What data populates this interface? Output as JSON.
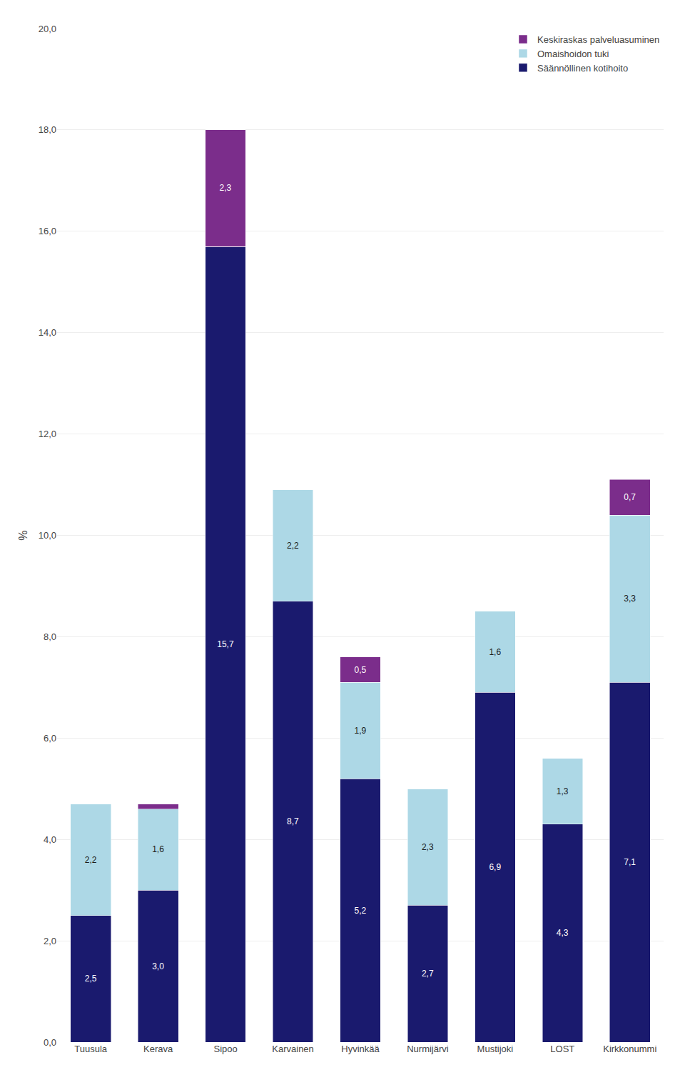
{
  "chart_data": {
    "type": "bar",
    "stacked": true,
    "data_labels": true,
    "categories": [
      "Tuusula",
      "Kerava",
      "Sipoo",
      "Karvainen",
      "Hyvinkää",
      "Nurmijärvi",
      "Mustijoki",
      "LOST",
      "Kirkkonummi"
    ],
    "series": [
      {
        "name": "Säännöllinen kotihoito",
        "color": "#1a1a6e",
        "values": [
          2.5,
          3.0,
          15.7,
          8.7,
          5.2,
          2.7,
          6.9,
          4.3,
          7.1
        ],
        "value_labels": [
          "2,5",
          "3,0",
          "15,7",
          "8,7",
          "5,2",
          "2,7",
          "6,9",
          "4,3",
          "7,1"
        ]
      },
      {
        "name": "Omaishoidon tuki",
        "color": "#add8e6",
        "values": [
          2.2,
          1.6,
          0.0,
          2.2,
          1.9,
          2.3,
          1.6,
          1.3,
          3.3
        ],
        "value_labels": [
          "2,2",
          "1,6",
          null,
          "2,2",
          "1,9",
          "2,3",
          "1,6",
          "1,3",
          "3,3"
        ]
      },
      {
        "name": "Keskiraskas palveluasuminen",
        "color": "#7b2d8b",
        "values": [
          0.0,
          0.1,
          2.3,
          0.0,
          0.5,
          0.0,
          0.0,
          0.0,
          0.7
        ],
        "value_labels": [
          null,
          null,
          "2,3",
          null,
          "0,5",
          null,
          null,
          null,
          "0,7"
        ]
      }
    ],
    "ylabel": "%",
    "ylim": [
      0,
      20.0
    ],
    "yticks": [
      {
        "value": 0.0,
        "label": "0,0"
      },
      {
        "value": 2.0,
        "label": "2,0"
      },
      {
        "value": 4.0,
        "label": "4,0"
      },
      {
        "value": 6.0,
        "label": "6,0"
      },
      {
        "value": 8.0,
        "label": "8,0"
      },
      {
        "value": 10.0,
        "label": "10,0"
      },
      {
        "value": 12.0,
        "label": "12,0"
      },
      {
        "value": 14.0,
        "label": "14,0"
      },
      {
        "value": 16.0,
        "label": "16,0"
      },
      {
        "value": 18.0,
        "label": "18,0"
      },
      {
        "value": 20.0,
        "label": "20,0"
      }
    ],
    "grid": true,
    "legend": "upper right"
  }
}
